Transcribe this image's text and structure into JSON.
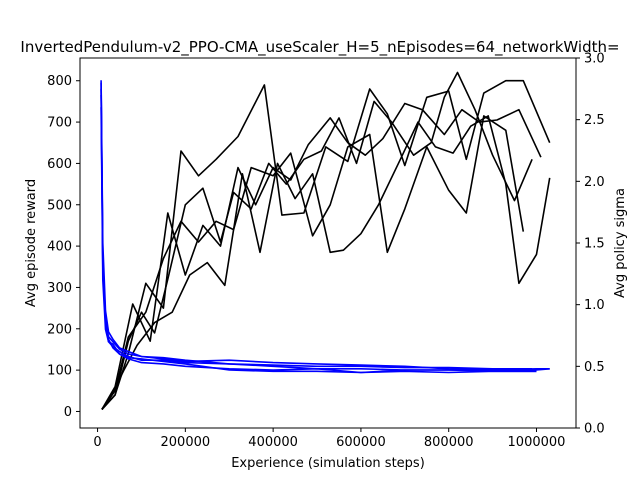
{
  "chart_data": {
    "type": "line",
    "title": "InvertedPendulum-v2_PPO-CMA_useScaler_H=5_nEpisodes=64_networkWidth=",
    "xlabel": "Experience (simulation steps)",
    "ylabel": "Avg episode reward",
    "y2label": "Avg policy sigma",
    "xlim": [
      -40000,
      1090000
    ],
    "ylim": [
      -40,
      855
    ],
    "y2lim": [
      0.0,
      3.0
    ],
    "x_ticks": [
      0,
      200000,
      400000,
      600000,
      800000,
      1000000
    ],
    "x_tick_labels": [
      "0",
      "200000",
      "400000",
      "600000",
      "800000",
      "1000000"
    ],
    "y_ticks": [
      0,
      100,
      200,
      300,
      400,
      500,
      600,
      700,
      800
    ],
    "y_tick_labels": [
      "0",
      "100",
      "200",
      "300",
      "400",
      "500",
      "600",
      "700",
      "800"
    ],
    "y2_ticks": [
      0.0,
      0.5,
      1.0,
      1.5,
      2.0,
      2.5,
      3.0
    ],
    "y2_tick_labels": [
      "0.0",
      "0.5",
      "1.0",
      "1.5",
      "2.0",
      "2.5",
      "3.0"
    ],
    "reward_color": "#000000",
    "sigma_color": "#0000ff",
    "reward_series": [
      {
        "x": [
          10000,
          40000,
          70000,
          110000,
          150000,
          190000,
          230000,
          270000,
          320000,
          380000,
          420000,
          470000,
          520000,
          570000,
          620000,
          660000,
          700000,
          750000,
          800000,
          840000,
          880000,
          930000,
          970000,
          1030000
        ],
        "y": [
          5,
          40,
          140,
          310,
          250,
          630,
          570,
          610,
          665,
          790,
          475,
          480,
          640,
          605,
          780,
          720,
          595,
          760,
          775,
          610,
          770,
          800,
          800,
          650
        ]
      },
      {
        "x": [
          10000,
          40000,
          70000,
          110000,
          150000,
          190000,
          230000,
          270000,
          310000,
          350000,
          400000,
          440000,
          490000,
          530000,
          570000,
          620000,
          660000,
          700000,
          750000,
          800000,
          840000,
          880000,
          930000,
          970000
        ],
        "y": [
          5,
          50,
          180,
          240,
          370,
          460,
          410,
          460,
          440,
          590,
          570,
          625,
          425,
          500,
          640,
          670,
          385,
          490,
          640,
          535,
          480,
          715,
          680,
          435
        ]
      },
      {
        "x": [
          10000,
          40000,
          80000,
          120000,
          160000,
          200000,
          240000,
          280000,
          320000,
          360000,
          400000,
          440000,
          480000,
          530000,
          570000,
          610000,
          650000,
          700000,
          740000,
          790000,
          830000,
          870000,
          910000,
          960000,
          1010000
        ],
        "y": [
          5,
          60,
          260,
          170,
          480,
          330,
          450,
          400,
          590,
          500,
          590,
          560,
          645,
          710,
          650,
          620,
          660,
          745,
          730,
          670,
          730,
          700,
          705,
          730,
          615
        ]
      },
      {
        "x": [
          10000,
          30000,
          60000,
          90000,
          130000,
          170000,
          210000,
          250000,
          290000,
          330000,
          370000,
          410000,
          450000,
          490000,
          530000,
          560000,
          600000,
          640000,
          690000,
          730000,
          770000,
          810000,
          850000,
          890000,
          930000,
          960000,
          1000000,
          1030000
        ],
        "y": [
          5,
          35,
          100,
          160,
          215,
          240,
          330,
          360,
          305,
          575,
          385,
          600,
          515,
          575,
          385,
          390,
          430,
          500,
          610,
          700,
          640,
          625,
          690,
          715,
          550,
          310,
          380,
          565
        ]
      },
      {
        "x": [
          10000,
          40000,
          70000,
          100000,
          130000,
          160000,
          200000,
          240000,
          280000,
          310000,
          350000,
          390000,
          430000,
          470000,
          510000,
          550000,
          590000,
          630000,
          670000,
          720000,
          760000,
          790000,
          820000,
          860000,
          900000,
          950000,
          990000
        ],
        "y": [
          5,
          40,
          170,
          240,
          190,
          320,
          500,
          540,
          410,
          530,
          490,
          600,
          550,
          610,
          630,
          710,
          600,
          750,
          700,
          620,
          650,
          760,
          820,
          730,
          620,
          510,
          610
        ]
      }
    ],
    "sigma_series": [
      {
        "x": [
          8000,
          12000,
          18000,
          25000,
          35000,
          50000,
          70000,
          100000,
          150000,
          200000,
          300000,
          400000,
          500000,
          600000,
          700000,
          800000,
          900000,
          1000000,
          1030000
        ],
        "y": [
          2.8,
          1.4,
          0.9,
          0.7,
          0.66,
          0.62,
          0.58,
          0.55,
          0.55,
          0.53,
          0.52,
          0.5,
          0.48,
          0.48,
          0.47,
          0.47,
          0.47,
          0.47,
          0.48
        ]
      },
      {
        "x": [
          8000,
          12000,
          18000,
          25000,
          35000,
          50000,
          70000,
          100000,
          150000,
          200000,
          300000,
          400000,
          500000,
          600000,
          700000,
          800000,
          900000,
          1000000
        ],
        "y": [
          2.7,
          1.3,
          0.85,
          0.72,
          0.65,
          0.6,
          0.57,
          0.56,
          0.54,
          0.52,
          0.47,
          0.46,
          0.46,
          0.45,
          0.46,
          0.45,
          0.46,
          0.46
        ]
      },
      {
        "x": [
          8000,
          12000,
          18000,
          25000,
          35000,
          50000,
          70000,
          100000,
          150000,
          200000,
          300000,
          400000,
          500000,
          600000,
          700000,
          800000,
          900000,
          1000000
        ],
        "y": [
          2.6,
          1.2,
          0.8,
          0.7,
          0.68,
          0.6,
          0.56,
          0.53,
          0.52,
          0.5,
          0.48,
          0.47,
          0.48,
          0.45,
          0.47,
          0.47,
          0.46,
          0.46
        ]
      },
      {
        "x": [
          8000,
          12000,
          18000,
          25000,
          35000,
          50000,
          70000,
          100000,
          150000,
          200000,
          300000,
          400000,
          500000,
          600000,
          700000,
          800000,
          900000,
          1000000,
          1030000
        ],
        "y": [
          2.75,
          1.35,
          0.88,
          0.74,
          0.7,
          0.64,
          0.6,
          0.58,
          0.56,
          0.54,
          0.55,
          0.53,
          0.52,
          0.51,
          0.5,
          0.48,
          0.47,
          0.48,
          0.48
        ]
      },
      {
        "x": [
          8000,
          12000,
          18000,
          25000,
          35000,
          50000,
          70000,
          100000,
          150000,
          200000,
          300000,
          400000,
          500000,
          600000,
          700000,
          800000,
          900000,
          990000
        ],
        "y": [
          2.82,
          1.5,
          0.95,
          0.78,
          0.72,
          0.65,
          0.62,
          0.58,
          0.57,
          0.55,
          0.52,
          0.51,
          0.5,
          0.5,
          0.49,
          0.49,
          0.48,
          0.48
        ]
      }
    ]
  }
}
